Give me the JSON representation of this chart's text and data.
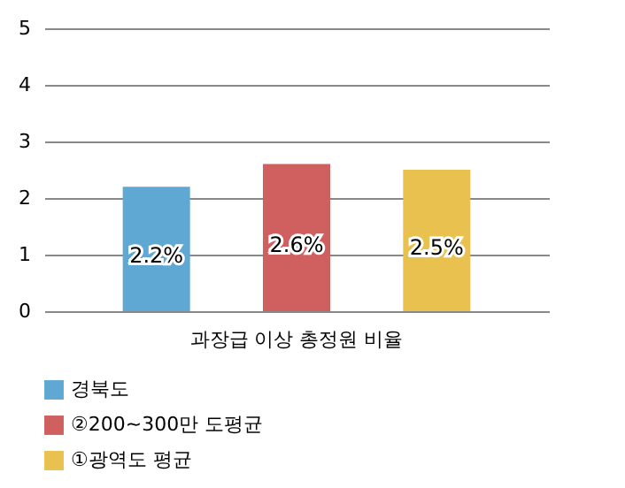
{
  "chart_data": {
    "type": "bar",
    "categories": [
      "과장급 이상 총정원 비율"
    ],
    "series": [
      {
        "name": "경북도",
        "color": "#5fa8d3",
        "values": [
          2.2
        ],
        "value_labels": [
          "2.2%"
        ]
      },
      {
        "name": "②200~300만 도평균",
        "color": "#d0605f",
        "values": [
          2.6
        ],
        "value_labels": [
          "2.6%"
        ]
      },
      {
        "name": "①광역도 평균",
        "color": "#e8c14e",
        "values": [
          2.5
        ],
        "value_labels": [
          "2.5%"
        ]
      }
    ],
    "ylim": [
      0,
      5
    ],
    "yticks": [
      0,
      1,
      2,
      3,
      4,
      5
    ],
    "grid": "y",
    "legend": "bottom"
  }
}
